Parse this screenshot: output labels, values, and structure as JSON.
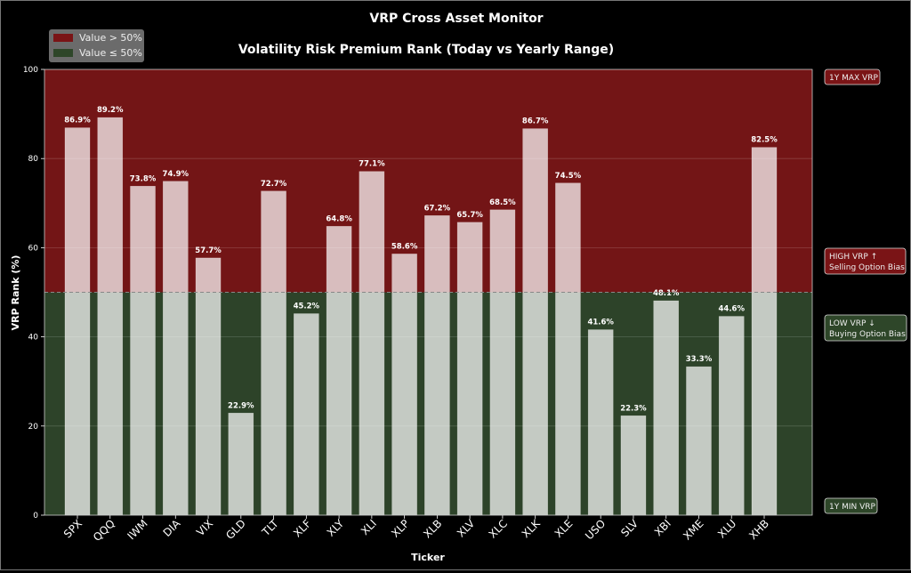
{
  "chart_data": {
    "type": "bar",
    "suptitle": "VRP Cross Asset Monitor",
    "title": "Volatility Risk Premium Rank (Today vs Yearly Range)",
    "xlabel": "Ticker",
    "ylabel": "VRP Rank (%)",
    "ylim": [
      0,
      100
    ],
    "yticks": [
      0,
      20,
      40,
      60,
      80,
      100
    ],
    "grid": true,
    "threshold": 50,
    "categories": [
      "SPX",
      "QQQ",
      "IWM",
      "DIA",
      "VIX",
      "GLD",
      "TLT",
      "XLF",
      "XLY",
      "XLI",
      "XLP",
      "XLB",
      "XLV",
      "XLC",
      "XLK",
      "XLE",
      "USO",
      "SLV",
      "XBI",
      "XME",
      "XLU",
      "XHB"
    ],
    "values": [
      86.9,
      89.2,
      73.8,
      74.9,
      57.7,
      22.9,
      72.7,
      45.2,
      64.8,
      77.1,
      58.6,
      67.2,
      65.7,
      68.5,
      86.7,
      74.5,
      41.6,
      22.3,
      48.1,
      33.3,
      44.6,
      82.5
    ],
    "legend": {
      "placement": "top-left",
      "entries": [
        {
          "label": "Value > 50%",
          "color": "#7a1416"
        },
        {
          "label": "Value ≤ 50%",
          "color": "#2e4629"
        }
      ]
    },
    "annotations": {
      "max": "1Y MAX VRP",
      "high_line1": "HIGH VRP ↑",
      "high_line2": "Selling Option Bias",
      "low_line1": "LOW VRP ↓",
      "low_line2": "Buying Option Bias",
      "min": "1Y MIN VRP"
    },
    "colors": {
      "high_zone": "#731516",
      "low_zone": "#2d4329",
      "bar": "#ffffff"
    }
  }
}
